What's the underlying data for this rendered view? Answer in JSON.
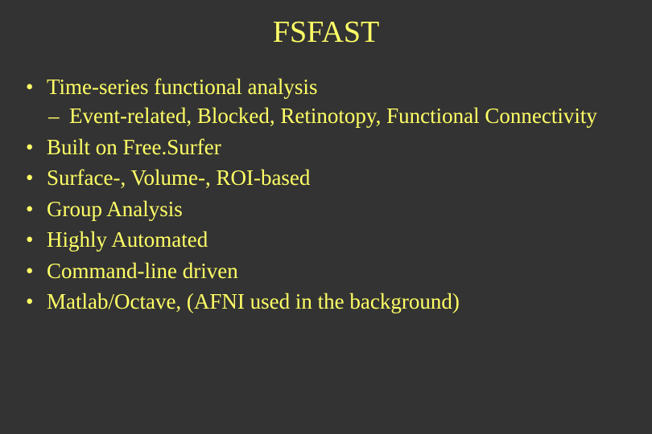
{
  "background_color": "#333333",
  "text_color": "#ffff66",
  "font_family": "Times New Roman",
  "title": "FSFAST",
  "title_fontsize": 38,
  "body_fontsize": 27,
  "bullets": [
    {
      "text": "Time-series functional analysis",
      "sub": [
        "Event-related, Blocked, Retinotopy, Functional Connectivity"
      ]
    },
    {
      "text": "Built on Free.Surfer"
    },
    {
      "text": "Surface-, Volume-, ROI-based"
    },
    {
      "text": "Group Analysis"
    },
    {
      "text": "Highly Automated"
    },
    {
      "text": "Command-line driven"
    },
    {
      "text": "Matlab/Octave, (AFNI used in the background)"
    }
  ]
}
